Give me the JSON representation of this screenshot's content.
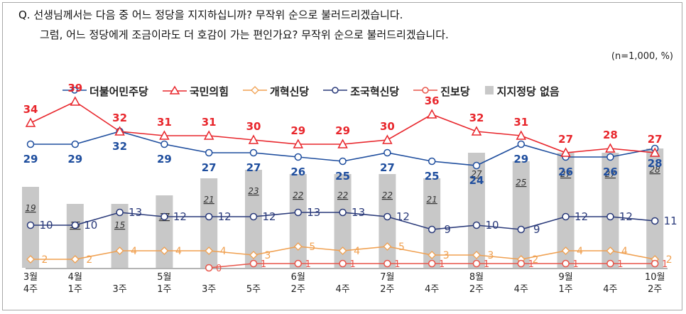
{
  "question": {
    "line1": "Q. 선생님께서는 다음 중 어느 정당을 지지하십니까? 무작위 순으로 불러드리겠습니다.",
    "line2": "그럼, 어느 정당에게 조금이라도 더 호감이 가는 편인가요? 무작위 순으로 불러드리겠습니다."
  },
  "note": "(n=1,000, %)",
  "colors": {
    "dem": "#1f4e9e",
    "ppp": "#e8262c",
    "reform": "#f0a050",
    "rebuild": "#2a3a7a",
    "progressive": "#e8554a",
    "none": "#c8c8c8"
  },
  "chart_data": {
    "type": "line",
    "categories": [
      [
        "3월",
        "4주"
      ],
      [
        "4월",
        "1주"
      ],
      [
        "",
        "3주"
      ],
      [
        "5월",
        "1주"
      ],
      [
        "",
        "3주"
      ],
      [
        "",
        "5주"
      ],
      [
        "6월",
        "2주"
      ],
      [
        "",
        "4주"
      ],
      [
        "7월",
        "2주"
      ],
      [
        "",
        "4주"
      ],
      [
        "8월",
        "2주"
      ],
      [
        "",
        "4주"
      ],
      [
        "9월",
        "1주"
      ],
      [
        "",
        "4주"
      ],
      [
        "10월",
        "2주"
      ]
    ],
    "series": [
      {
        "name": "더불어민주당",
        "key": "dem",
        "values": [
          29,
          29,
          32,
          29,
          27,
          27,
          26,
          25,
          27,
          25,
          24,
          29,
          26,
          26,
          28
        ]
      },
      {
        "name": "국민의힘",
        "key": "ppp",
        "values": [
          34,
          39,
          32,
          31,
          31,
          30,
          29,
          29,
          30,
          36,
          32,
          31,
          27,
          28,
          27
        ]
      },
      {
        "name": "개혁신당",
        "key": "reform",
        "values": [
          2,
          2,
          4,
          4,
          4,
          3,
          5,
          4,
          5,
          3,
          3,
          2,
          4,
          4,
          2
        ]
      },
      {
        "name": "조국혁신당",
        "key": "rebuild",
        "values": [
          10,
          10,
          13,
          12,
          12,
          12,
          13,
          13,
          12,
          9,
          10,
          9,
          12,
          12,
          11
        ]
      },
      {
        "name": "진보당",
        "key": "progressive",
        "values": [
          null,
          null,
          null,
          null,
          0,
          1,
          1,
          1,
          1,
          1,
          1,
          1,
          1,
          1,
          1
        ]
      },
      {
        "name": "지지정당 없음",
        "key": "none",
        "type": "bar",
        "values": [
          19,
          15,
          15,
          17,
          21,
          23,
          22,
          22,
          22,
          21,
          27,
          25,
          27,
          27,
          28
        ]
      }
    ]
  }
}
